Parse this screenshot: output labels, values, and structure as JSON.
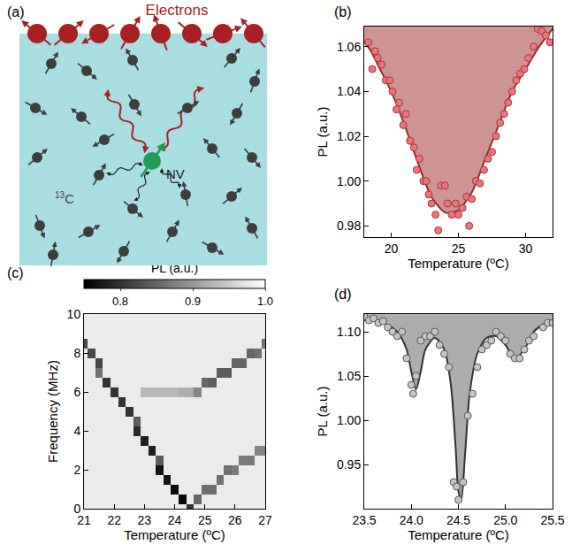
{
  "chart_data": [
    {
      "type": "diagram",
      "panel": "(a)",
      "labels": {
        "electrons": "Electrons",
        "nv": "NV",
        "isotope": "13",
        "element": "C"
      }
    },
    {
      "type": "scatter",
      "panel": "(b)",
      "x_label": "Temperature (ºC)",
      "y_label": "PL (a.u.)",
      "xlim": [
        18,
        32
      ],
      "ylim": [
        0.975,
        1.069
      ],
      "xticks": [
        20,
        25,
        30
      ],
      "yticks": [
        0.98,
        {
          "value": 1,
          "label": "1.00"
        },
        1.02,
        1.04,
        1.06
      ],
      "series": [
        {
          "type": "area",
          "color": "#a3262b",
          "line_style": "solid",
          "x": [
            18,
            18.5,
            19,
            20,
            21,
            22,
            23,
            24,
            24.5,
            25,
            26,
            27,
            28,
            29,
            30,
            31,
            32
          ],
          "values": [
            1.062,
            1.058,
            1.052,
            1.04,
            1.025,
            1.008,
            0.993,
            0.986,
            0.986,
            0.987,
            0.995,
            1.01,
            1.025,
            1.04,
            1.05,
            1.06,
            1.068
          ]
        },
        {
          "type": "scatter",
          "marker": "circle",
          "color": "#e8777b",
          "x": [
            18.3,
            18.6,
            18.8,
            19.0,
            19.3,
            19.6,
            19.9,
            20.1,
            20.4,
            20.6,
            20.9,
            21.1,
            21.4,
            21.7,
            21.9,
            22.1,
            22.4,
            22.6,
            22.8,
            23.0,
            23.3,
            23.5,
            23.7,
            24.0,
            24.2,
            24.5,
            24.8,
            25.0,
            25.3,
            25.6,
            25.8,
            26.0,
            26.3,
            26.6,
            26.9,
            27.2,
            27.5,
            27.8,
            28.1,
            28.4,
            28.7,
            29.0,
            29.3,
            29.6,
            29.9,
            30.2,
            30.6,
            30.9,
            31.2,
            31.5,
            31.8
          ],
          "values": [
            1.062,
            1.05,
            1.058,
            1.055,
            1.052,
            1.045,
            1.045,
            1.04,
            1.032,
            1.035,
            1.025,
            1.03,
            1.018,
            1.015,
            1.005,
            1.01,
            1.0,
            1.0,
            0.994,
            0.99,
            0.985,
            0.978,
            0.998,
            0.998,
            0.99,
            0.985,
            0.99,
            0.985,
            0.988,
            0.993,
            0.98,
            0.992,
            1.0,
            0.999,
            1.005,
            1.01,
            1.013,
            1.02,
            1.026,
            1.03,
            1.035,
            1.04,
            1.045,
            1.048,
            1.05,
            1.055,
            1.06,
            1.068,
            1.067,
            1.065,
            1.062
          ]
        }
      ]
    },
    {
      "type": "heatmap",
      "panel": "(c)",
      "x_label": "Temperature (ºC)",
      "y_label": "Frequency (MHz)",
      "colorbar_title": "PL (a.u.)",
      "xlim": [
        21,
        27
      ],
      "ylim": [
        0,
        10
      ],
      "xticks": [
        21,
        22,
        23,
        24,
        25,
        26,
        27
      ],
      "yticks": [
        0,
        2,
        4,
        6,
        8,
        10
      ],
      "zlim": [
        0.75,
        1.0
      ],
      "zticks": [
        0.8,
        0.9,
        {
          "value": 1,
          "label": "1.0"
        }
      ],
      "x": [
        21,
        21.25,
        21.5,
        21.75,
        22,
        22.25,
        22.5,
        22.75,
        23,
        23.25,
        23.5,
        23.75,
        24,
        24.25,
        24.5,
        24.75,
        25,
        25.25,
        25.5,
        25.75,
        26,
        26.25,
        26.5,
        26.75,
        27
      ],
      "y": [
        0,
        0.5,
        1,
        1.5,
        2,
        2.5,
        3,
        3.5,
        4,
        4.5,
        5,
        5.5,
        6,
        6.5,
        7,
        7.5,
        8,
        8.5,
        9,
        9.5,
        10
      ],
      "z": [
        [
          0.98,
          0.98,
          0.98,
          0.98,
          0.98,
          0.98,
          0.98,
          0.98,
          0.98,
          0.98,
          0.98,
          0.98,
          0.98,
          0.98,
          0.8,
          0.98,
          0.98,
          0.98,
          0.98,
          0.98,
          0.98,
          0.98,
          0.98,
          0.98,
          0.98
        ],
        [
          0.98,
          0.98,
          0.98,
          0.98,
          0.98,
          0.98,
          0.98,
          0.98,
          0.98,
          0.98,
          0.98,
          0.98,
          0.98,
          0.76,
          0.98,
          0.85,
          0.98,
          0.98,
          0.98,
          0.98,
          0.98,
          0.98,
          0.98,
          0.98,
          0.98
        ],
        [
          0.98,
          0.98,
          0.98,
          0.98,
          0.98,
          0.98,
          0.98,
          0.98,
          0.98,
          0.98,
          0.98,
          0.98,
          0.76,
          0.98,
          0.98,
          0.98,
          0.86,
          0.86,
          0.98,
          0.98,
          0.98,
          0.98,
          0.98,
          0.98,
          0.98
        ],
        [
          0.98,
          0.98,
          0.98,
          0.98,
          0.98,
          0.98,
          0.98,
          0.98,
          0.98,
          0.98,
          0.98,
          0.77,
          0.98,
          0.98,
          0.98,
          0.98,
          0.98,
          0.98,
          0.86,
          0.98,
          0.98,
          0.98,
          0.98,
          0.98,
          0.98
        ],
        [
          0.98,
          0.98,
          0.98,
          0.98,
          0.98,
          0.98,
          0.98,
          0.98,
          0.98,
          0.98,
          0.77,
          0.98,
          0.98,
          0.98,
          0.98,
          0.98,
          0.98,
          0.98,
          0.98,
          0.86,
          0.87,
          0.98,
          0.98,
          0.98,
          0.98
        ],
        [
          0.98,
          0.98,
          0.98,
          0.98,
          0.98,
          0.98,
          0.98,
          0.98,
          0.98,
          0.98,
          0.84,
          0.98,
          0.98,
          0.98,
          0.98,
          0.98,
          0.98,
          0.98,
          0.98,
          0.98,
          0.98,
          0.87,
          0.87,
          0.98,
          0.98
        ],
        [
          0.98,
          0.98,
          0.98,
          0.98,
          0.98,
          0.98,
          0.98,
          0.98,
          0.98,
          0.78,
          0.98,
          0.98,
          0.98,
          0.98,
          0.98,
          0.98,
          0.98,
          0.98,
          0.98,
          0.98,
          0.98,
          0.98,
          0.98,
          0.88,
          0.88
        ],
        [
          0.98,
          0.98,
          0.98,
          0.98,
          0.98,
          0.98,
          0.98,
          0.98,
          0.78,
          0.98,
          0.98,
          0.98,
          0.98,
          0.98,
          0.98,
          0.98,
          0.98,
          0.98,
          0.98,
          0.98,
          0.98,
          0.98,
          0.98,
          0.98,
          0.98
        ],
        [
          0.98,
          0.98,
          0.98,
          0.98,
          0.98,
          0.98,
          0.98,
          0.79,
          0.98,
          0.98,
          0.98,
          0.98,
          0.98,
          0.98,
          0.98,
          0.98,
          0.98,
          0.98,
          0.98,
          0.98,
          0.98,
          0.98,
          0.98,
          0.98,
          0.98
        ],
        [
          0.98,
          0.98,
          0.98,
          0.98,
          0.98,
          0.98,
          0.98,
          0.84,
          0.98,
          0.98,
          0.98,
          0.98,
          0.98,
          0.98,
          0.98,
          0.98,
          0.98,
          0.98,
          0.98,
          0.98,
          0.98,
          0.98,
          0.98,
          0.98,
          0.98
        ],
        [
          0.98,
          0.98,
          0.98,
          0.98,
          0.98,
          0.98,
          0.8,
          0.98,
          0.98,
          0.98,
          0.98,
          0.98,
          0.98,
          0.98,
          0.98,
          0.98,
          0.98,
          0.98,
          0.98,
          0.98,
          0.98,
          0.98,
          0.98,
          0.98,
          0.98
        ],
        [
          0.98,
          0.98,
          0.98,
          0.98,
          0.98,
          0.8,
          0.98,
          0.98,
          0.98,
          0.98,
          0.98,
          0.98,
          0.98,
          0.98,
          0.98,
          0.98,
          0.98,
          0.98,
          0.98,
          0.98,
          0.98,
          0.98,
          0.98,
          0.98,
          0.98
        ],
        [
          0.98,
          0.98,
          0.98,
          0.98,
          0.8,
          0.98,
          0.98,
          0.98,
          0.93,
          0.93,
          0.93,
          0.93,
          0.93,
          0.92,
          0.92,
          0.88,
          0.98,
          0.98,
          0.98,
          0.98,
          0.98,
          0.98,
          0.98,
          0.98,
          0.98
        ],
        [
          0.98,
          0.98,
          0.98,
          0.8,
          0.98,
          0.98,
          0.98,
          0.98,
          0.98,
          0.98,
          0.98,
          0.98,
          0.98,
          0.98,
          0.98,
          0.98,
          0.85,
          0.84,
          0.98,
          0.98,
          0.98,
          0.98,
          0.98,
          0.98,
          0.98
        ],
        [
          0.98,
          0.98,
          0.86,
          0.98,
          0.98,
          0.98,
          0.98,
          0.98,
          0.98,
          0.98,
          0.98,
          0.98,
          0.98,
          0.98,
          0.98,
          0.98,
          0.98,
          0.98,
          0.84,
          0.84,
          0.98,
          0.98,
          0.98,
          0.98,
          0.98
        ],
        [
          0.98,
          0.98,
          0.82,
          0.98,
          0.98,
          0.98,
          0.98,
          0.98,
          0.98,
          0.98,
          0.98,
          0.98,
          0.98,
          0.98,
          0.98,
          0.98,
          0.98,
          0.98,
          0.98,
          0.98,
          0.85,
          0.85,
          0.98,
          0.98,
          0.98
        ],
        [
          0.98,
          0.82,
          0.98,
          0.98,
          0.98,
          0.98,
          0.98,
          0.98,
          0.98,
          0.98,
          0.98,
          0.98,
          0.98,
          0.98,
          0.98,
          0.98,
          0.98,
          0.98,
          0.98,
          0.98,
          0.98,
          0.98,
          0.85,
          0.86,
          0.98
        ],
        [
          0.82,
          0.98,
          0.98,
          0.98,
          0.98,
          0.98,
          0.98,
          0.98,
          0.98,
          0.98,
          0.98,
          0.98,
          0.98,
          0.98,
          0.98,
          0.98,
          0.98,
          0.98,
          0.98,
          0.98,
          0.98,
          0.98,
          0.98,
          0.98,
          0.86
        ],
        [
          0.98,
          0.98,
          0.98,
          0.98,
          0.98,
          0.98,
          0.98,
          0.98,
          0.98,
          0.98,
          0.98,
          0.98,
          0.98,
          0.98,
          0.98,
          0.98,
          0.98,
          0.98,
          0.98,
          0.98,
          0.98,
          0.98,
          0.98,
          0.98,
          0.98
        ],
        [
          0.98,
          0.98,
          0.98,
          0.98,
          0.98,
          0.98,
          0.98,
          0.98,
          0.98,
          0.98,
          0.98,
          0.98,
          0.98,
          0.98,
          0.98,
          0.98,
          0.98,
          0.98,
          0.98,
          0.98,
          0.98,
          0.98,
          0.98,
          0.98,
          0.98
        ],
        [
          0.98,
          0.98,
          0.98,
          0.98,
          0.98,
          0.98,
          0.98,
          0.98,
          0.98,
          0.98,
          0.98,
          0.98,
          0.98,
          0.98,
          0.98,
          0.98,
          0.98,
          0.98,
          0.98,
          0.98,
          0.98,
          0.98,
          0.98,
          0.98,
          0.98
        ]
      ]
    },
    {
      "type": "scatter",
      "panel": "(d)",
      "x_label": "Temperature (ºC)",
      "y_label": "PL (a.u.)",
      "xlim": [
        23.5,
        25.5
      ],
      "ylim": [
        0.9,
        1.12
      ],
      "xticks": [
        23.5,
        {
          "value": 24,
          "label": "24.0"
        },
        24.5,
        {
          "value": 25,
          "label": "25.0"
        },
        25.5
      ],
      "yticks": [
        0.95,
        {
          "value": 1,
          "label": "1.00"
        },
        1.05,
        {
          "value": 1.1,
          "label": "1.10"
        }
      ],
      "series": [
        {
          "type": "area",
          "color": "#333333",
          "line_style": "solid",
          "x": [
            23.5,
            23.7,
            23.85,
            23.95,
            24.0,
            24.05,
            24.1,
            24.15,
            24.25,
            24.35,
            24.42,
            24.47,
            24.5,
            24.53,
            24.57,
            24.62,
            24.7,
            24.8,
            24.9,
            25.0,
            25.1,
            25.2,
            25.3,
            25.4,
            25.5
          ],
          "values": [
            1.113,
            1.11,
            1.1,
            1.08,
            1.055,
            1.035,
            1.055,
            1.08,
            1.093,
            1.08,
            1.04,
            0.97,
            0.92,
            0.91,
            0.96,
            1.03,
            1.075,
            1.093,
            1.095,
            1.085,
            1.07,
            1.08,
            1.1,
            1.108,
            1.112
          ]
        },
        {
          "type": "scatter",
          "marker": "circle",
          "color": "#c4c4c4",
          "x": [
            23.5,
            23.55,
            23.6,
            23.65,
            23.7,
            23.75,
            23.8,
            23.85,
            23.9,
            23.95,
            24.0,
            24.02,
            24.05,
            24.1,
            24.15,
            24.2,
            24.25,
            24.3,
            24.35,
            24.4,
            24.45,
            24.48,
            24.5,
            24.55,
            24.6,
            24.65,
            24.7,
            24.75,
            24.8,
            24.85,
            24.9,
            24.95,
            25.0,
            25.05,
            25.1,
            25.15,
            25.2,
            25.25,
            25.3,
            25.4,
            25.45,
            25.5
          ],
          "values": [
            1.117,
            1.113,
            1.115,
            1.11,
            1.112,
            1.105,
            1.1,
            1.095,
            1.1,
            1.07,
            1.04,
            1.03,
            1.05,
            1.09,
            1.095,
            1.095,
            1.1,
            1.085,
            1.075,
            1.06,
            0.93,
            0.925,
            0.91,
            0.93,
            1.005,
            1.03,
            1.06,
            1.08,
            1.085,
            1.09,
            1.1,
            1.095,
            1.09,
            1.075,
            1.07,
            1.07,
            1.08,
            1.09,
            1.095,
            1.105,
            1.11,
            1.11
          ]
        }
      ]
    }
  ]
}
